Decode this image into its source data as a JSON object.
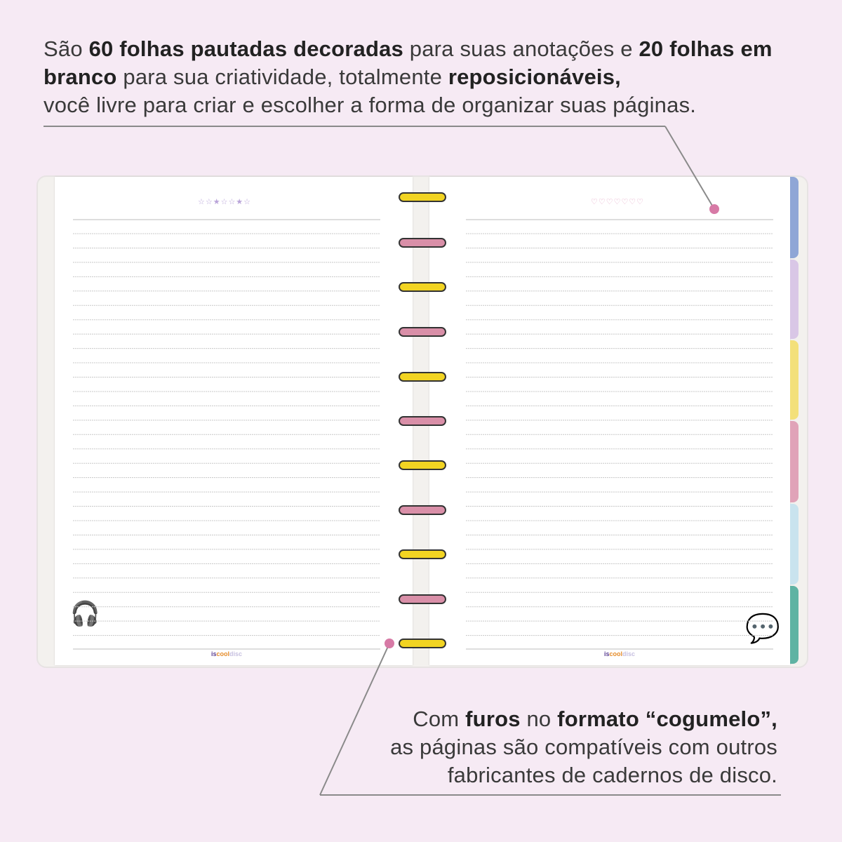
{
  "top_text": {
    "p1": "São ",
    "b1": "60 folhas pautadas decoradas",
    "p2": " para suas anotações e ",
    "b2": "20 folhas em branco",
    "p3": " para sua criatividade, totalmente ",
    "b3": "reposicionáveis,",
    "p4": "você livre para criar e escolher a forma de organizar suas páginas."
  },
  "bottom_text": {
    "p1": "Com ",
    "b1": "furos",
    "p2": " no ",
    "b2": "formato “cogumelo”,",
    "p3": "as páginas são compatíveis com outros",
    "p4": "fabricantes de cadernos de disco."
  },
  "logo": {
    "a": "is",
    "b": "cool",
    "c": "disc"
  },
  "colors": {
    "background": "#f6eaf4",
    "ring_yellow": "#f2d422",
    "ring_pink": "#d98fa8",
    "dot": "#d77aa6",
    "tabs": [
      "#8fa6d6",
      "#d9c7e6",
      "#f3e07a",
      "#e0a3b8",
      "#c9e3ee",
      "#5fb3a3"
    ]
  }
}
